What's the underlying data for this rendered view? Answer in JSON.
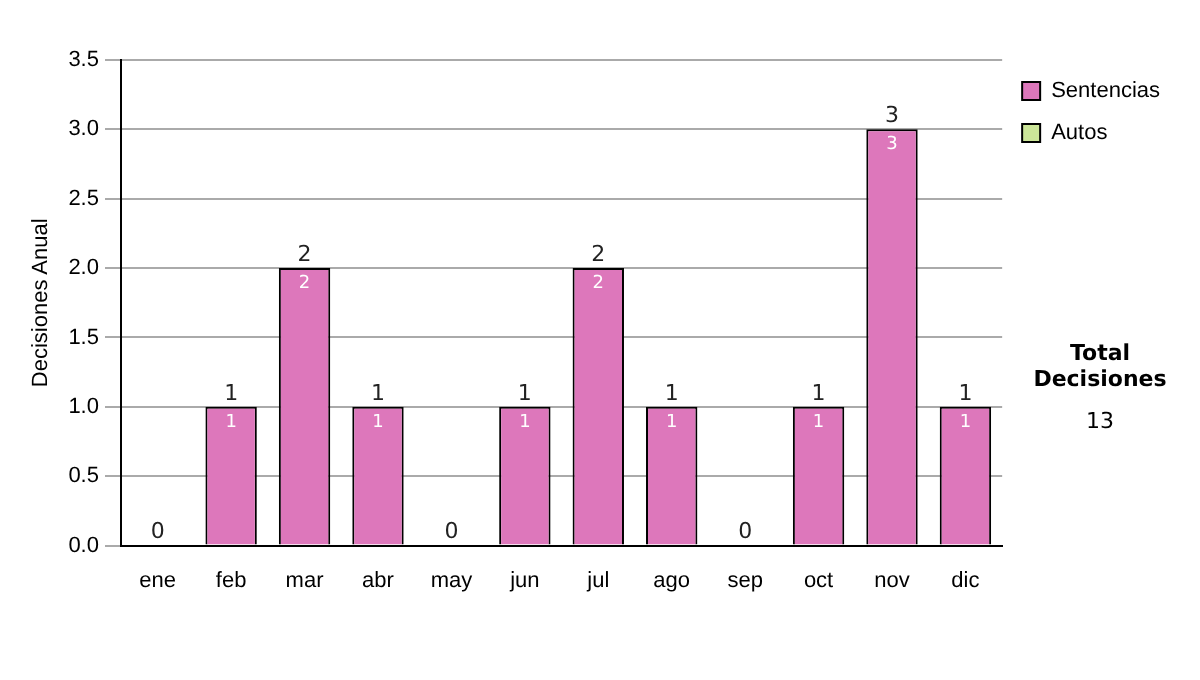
{
  "chart_data": {
    "type": "bar",
    "stacked": true,
    "ylabel": "Decisiones Anual",
    "categories": [
      "ene",
      "feb",
      "mar",
      "abr",
      "may",
      "jun",
      "jul",
      "ago",
      "sep",
      "oct",
      "nov",
      "dic"
    ],
    "series": [
      {
        "name": "Sentencias",
        "color": "#dd77bb",
        "values": [
          0,
          1,
          2,
          1,
          0,
          1,
          2,
          1,
          0,
          1,
          3,
          1
        ],
        "value_labels": [
          null,
          "1",
          "2",
          "1",
          null,
          "1",
          "2",
          "1",
          null,
          "1",
          "3",
          "1"
        ]
      },
      {
        "name": "Autos",
        "color": "#cce699",
        "values": [
          0,
          0,
          0,
          0,
          0,
          0,
          0,
          0,
          0,
          0,
          0,
          0
        ]
      }
    ],
    "totals": [
      "0",
      "1",
      "2",
      "1",
      "0",
      "1",
      "2",
      "1",
      "0",
      "1",
      "3",
      "1"
    ],
    "ylim": [
      0,
      3.5
    ],
    "yticks": [
      {
        "value": 0,
        "label": "0.0"
      },
      {
        "value": 0.5,
        "label": "0.5"
      },
      {
        "value": 1,
        "label": "1.0"
      },
      {
        "value": 1.5,
        "label": "1.5"
      },
      {
        "value": 2,
        "label": "2.0"
      },
      {
        "value": 2.5,
        "label": "2.5"
      },
      {
        "value": 3,
        "label": "3.0"
      },
      {
        "value": 3.5,
        "label": "3.5"
      }
    ],
    "grid": "y",
    "legend": "right",
    "annotations": [
      "Total Decisiones",
      "13"
    ]
  }
}
